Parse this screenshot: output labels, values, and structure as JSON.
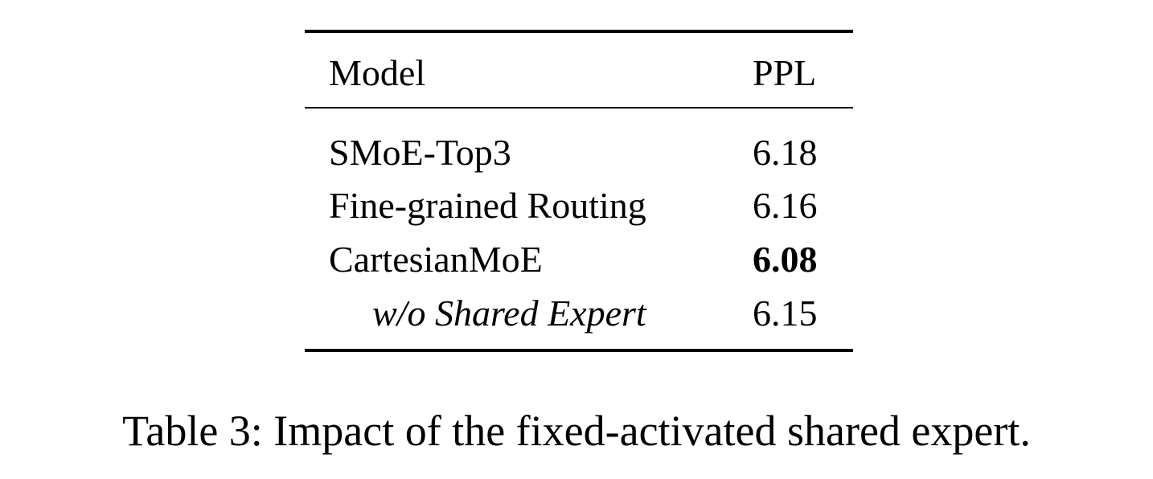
{
  "table": {
    "header": {
      "model": "Model",
      "ppl": "PPL"
    },
    "rows": [
      {
        "model": "SMoE-Top3",
        "ppl": "6.18"
      },
      {
        "model": "Fine-grained Routing",
        "ppl": "6.16"
      },
      {
        "model": "CartesianMoE",
        "ppl": "6.08"
      },
      {
        "model": "w/o Shared Expert",
        "ppl": "6.15"
      }
    ]
  },
  "caption": "Table 3: Impact of the fixed-activated shared expert."
}
